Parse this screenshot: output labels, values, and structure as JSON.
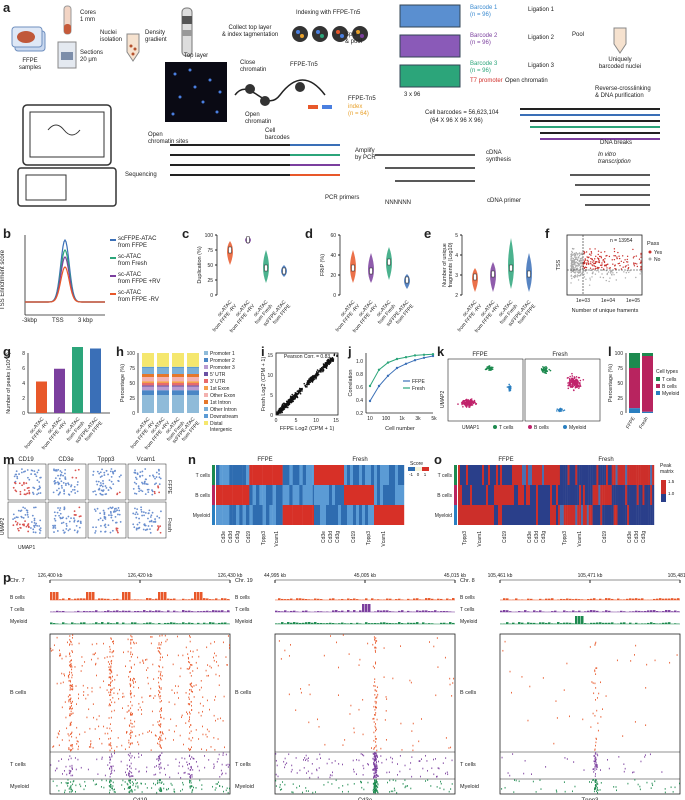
{
  "panels": [
    "a",
    "b",
    "c",
    "d",
    "e",
    "f",
    "g",
    "h",
    "i",
    "j",
    "k",
    "l",
    "m",
    "n",
    "o",
    "p"
  ],
  "a": {
    "ffpe_samples": "FFPE\nsamples",
    "cores": "Cores\n1 mm",
    "sections": "Sections\n20 μm",
    "nuclei_isolation": "Nuclei\nisolation",
    "density_gradient": "Density\ngradient",
    "collect": "Collect top layer\n& index tagmentation",
    "top_layer": "Top layer",
    "indexing": "Indexing with FFPE-Tn5",
    "split_pool": "Split\n& pool",
    "barcode1": "Barcode 1\n(n = 96)",
    "barcode2": "Barcode 2\n(n = 96)",
    "barcode3": "Barcode 3\n(n = 96)",
    "ligation1": "Ligation 1",
    "ligation2": "Ligation 2",
    "ligation3": "Ligation 3",
    "t7": "T7 promoter",
    "open_chromatin_right": "Open chromatin",
    "plates": "3 x 96",
    "pool": "Pool",
    "uniquely": "Uniquely\nbarcoded nuclei",
    "close_chromatin": "Close\nchromatin",
    "open_chromatin_mid": "Open\nchromatin",
    "ffpe_tn5_a": "FFPE-Tn5",
    "ffpe_tn5_b": "FFPE-Tn5",
    "index": "index\n(n = 64)",
    "reverse": "Reverse-crosslinking\n& DNA purification",
    "cell_barcodes_count": "Cell barcodes = 56,623,104",
    "cell_barcodes_formula": "(64 X 96 X 96 X 96)",
    "dna_breaks": "DNA breaks",
    "in_vitro": "In vitro\ntranscription",
    "open_sites": "Open\nchromatin sites",
    "cell_barcodes": "Cell\nbarcodes",
    "amplify": "Amplify\nby PCR",
    "pcr_primers": "PCR primers",
    "cdna_synthesis": "cDNA\nsynthesis",
    "cdna_primer": "cDNA primer",
    "sequencing": "Sequencing",
    "five": "5'",
    "three": "3'",
    "nnn": "NNNNNN"
  },
  "b": {
    "ylabel": "TSS Enrichment score",
    "ticks": [
      "-3kbp",
      "TSS",
      "3 kbp"
    ],
    "legend": [
      "scFFPE-ATAC\nfrom FFPE",
      "sc-ATAC\nfrom Fresh",
      "sc-ATAC\nfrom FFPE +RV",
      "sc-ATAC\nfrom FFPE -RV"
    ],
    "colors": [
      "#3a6fb7",
      "#2ca57a",
      "#7b3f9e",
      "#e8582a"
    ]
  },
  "common_x": [
    "sc-ATAC\nfrom FFPE -RV",
    "sc-ATAC\nfrom FFPE +RV",
    "sc-ATAC\nfrom Fresh",
    "scFFPE-ATAC\nfrom FFPE"
  ],
  "c": {
    "ylabel": "Duplication (%)",
    "yticks": [
      "0",
      "25",
      "50",
      "75",
      "100"
    ]
  },
  "d": {
    "ylabel": "FRiP (%)",
    "yticks": [
      "0",
      "20",
      "40",
      "60"
    ]
  },
  "e": {
    "ylabel": "Number of unique\nfragments (Log10)",
    "yticks": [
      "2",
      "3",
      "4",
      "5"
    ]
  },
  "f": {
    "n": "n = 13954",
    "ylabel": "TSS",
    "xlabel": "Number of unique framents",
    "xticks": [
      "1e+03",
      "1e+04",
      "1e+05"
    ],
    "legend_title": "Pass",
    "legend": [
      "Yes",
      "No"
    ]
  },
  "g": {
    "ylabel": "Number of peaks (x10^5)",
    "yticks": [
      "0",
      "2",
      "4",
      "6",
      "8"
    ],
    "values": [
      4.2,
      5.9,
      8.8,
      8.6
    ],
    "colors": [
      "#e8582a",
      "#7b3f9e",
      "#2ca57a",
      "#3a6fb7"
    ]
  },
  "h": {
    "ylabel": "Percentage (%)",
    "yticks": [
      "0",
      "25",
      "50",
      "75",
      "100"
    ],
    "legend": [
      "Promoter 1",
      "Promoter 2",
      "Promoter 3",
      "5' UTR",
      "3' UTR",
      "1st Exon",
      "Other Exon",
      "1st Intron",
      "Other Intron",
      "Downstream",
      "Distal\nIntergenic"
    ],
    "colors": [
      "#8fbbd9",
      "#4a86c5",
      "#b99bd0",
      "#6a51a3",
      "#e86b6b",
      "#f4a04a",
      "#f3b2b0",
      "#e5772b",
      "#7aaed7",
      "#5b9bd5",
      "#f5e76e"
    ]
  },
  "i": {
    "corr": "Pearson Corr. = 0.83",
    "ylabel": "Fresh Log2 (CPM + 1)",
    "xlabel": "FFPE Log2 (CPM + 1)",
    "ticks": [
      "0",
      "5",
      "10",
      "15"
    ]
  },
  "j": {
    "ylabel": "Correlation",
    "xlabel": "Cell number",
    "xticks": [
      "10",
      "100",
      "1k",
      "3k",
      "5k"
    ],
    "yticks": [
      "0.2",
      "0.4",
      "0.6",
      "0.8",
      "1.0"
    ],
    "legend": [
      "FFPE",
      "Fresh"
    ]
  },
  "k": {
    "title_ffpe": "FFPE",
    "title_fresh": "Fresh",
    "ylabel": "UMAP2",
    "xlabel": "UMAP1",
    "legend": [
      "T cells",
      "B cells",
      "Myeloid"
    ]
  },
  "l": {
    "ylabel": "Percentage (%)",
    "yticks": [
      "0",
      "25",
      "50",
      "75",
      "100"
    ],
    "xlabels": [
      "FFPE",
      "Fresh"
    ],
    "legend_title": "Cell types",
    "legend": [
      "T cells",
      "B cells",
      "Myeloid"
    ]
  },
  "m": {
    "genes": [
      "CD19",
      "CD3e",
      "Tppp3",
      "Vcam1"
    ],
    "rows": [
      "FFPE",
      "Fresh"
    ],
    "ylabel": "UMAP2",
    "xlabel": "UMAP1"
  },
  "n": {
    "title_ffpe": "FFPE",
    "title_fresh": "Fresh",
    "rows": [
      "T cells",
      "B cells",
      "Myeloid"
    ],
    "score": "Score",
    "score_ticks": [
      "-1",
      "0",
      "1"
    ],
    "genes": [
      "Cd3e",
      "Cd3d",
      "Cd3g",
      "Cd19",
      "Tppp3",
      "Vcam1"
    ]
  },
  "o": {
    "title_ffpe": "FFPE",
    "title_fresh": "Fresh",
    "rows": [
      "T cells",
      "B cells",
      "Myeloid"
    ],
    "legend_title": "Peak\nmatrix",
    "legend_ticks": [
      "1.5",
      "1.0"
    ],
    "genes_ffpe": [
      "Tppp3",
      "Vcam1",
      "Cd19",
      "Cd3e",
      "Cd3d",
      "Cd3g"
    ],
    "genes_fresh": [
      "Tppp3",
      "Vcam1",
      "Cd19",
      "Cd3e",
      "Cd3d",
      "Cd3g"
    ]
  },
  "p": {
    "tracks": [
      {
        "chr": "Chr. 7",
        "ticks": [
          "126,400 kb",
          "126,420 kb",
          "126,430 kb"
        ],
        "gene": "Cd19"
      },
      {
        "chr": "Chr. 19",
        "ticks": [
          "44,995 kb",
          "45,005 kb",
          "45,015 kb"
        ],
        "gene": "Cd3e"
      },
      {
        "chr": "Chr. 8",
        "ticks": [
          "105,461 kb",
          "105,471 kb",
          "105,481 kb"
        ],
        "gene": "Tppp3"
      }
    ],
    "rows": [
      "B cells",
      "T cells",
      "Myeloid"
    ]
  }
}
